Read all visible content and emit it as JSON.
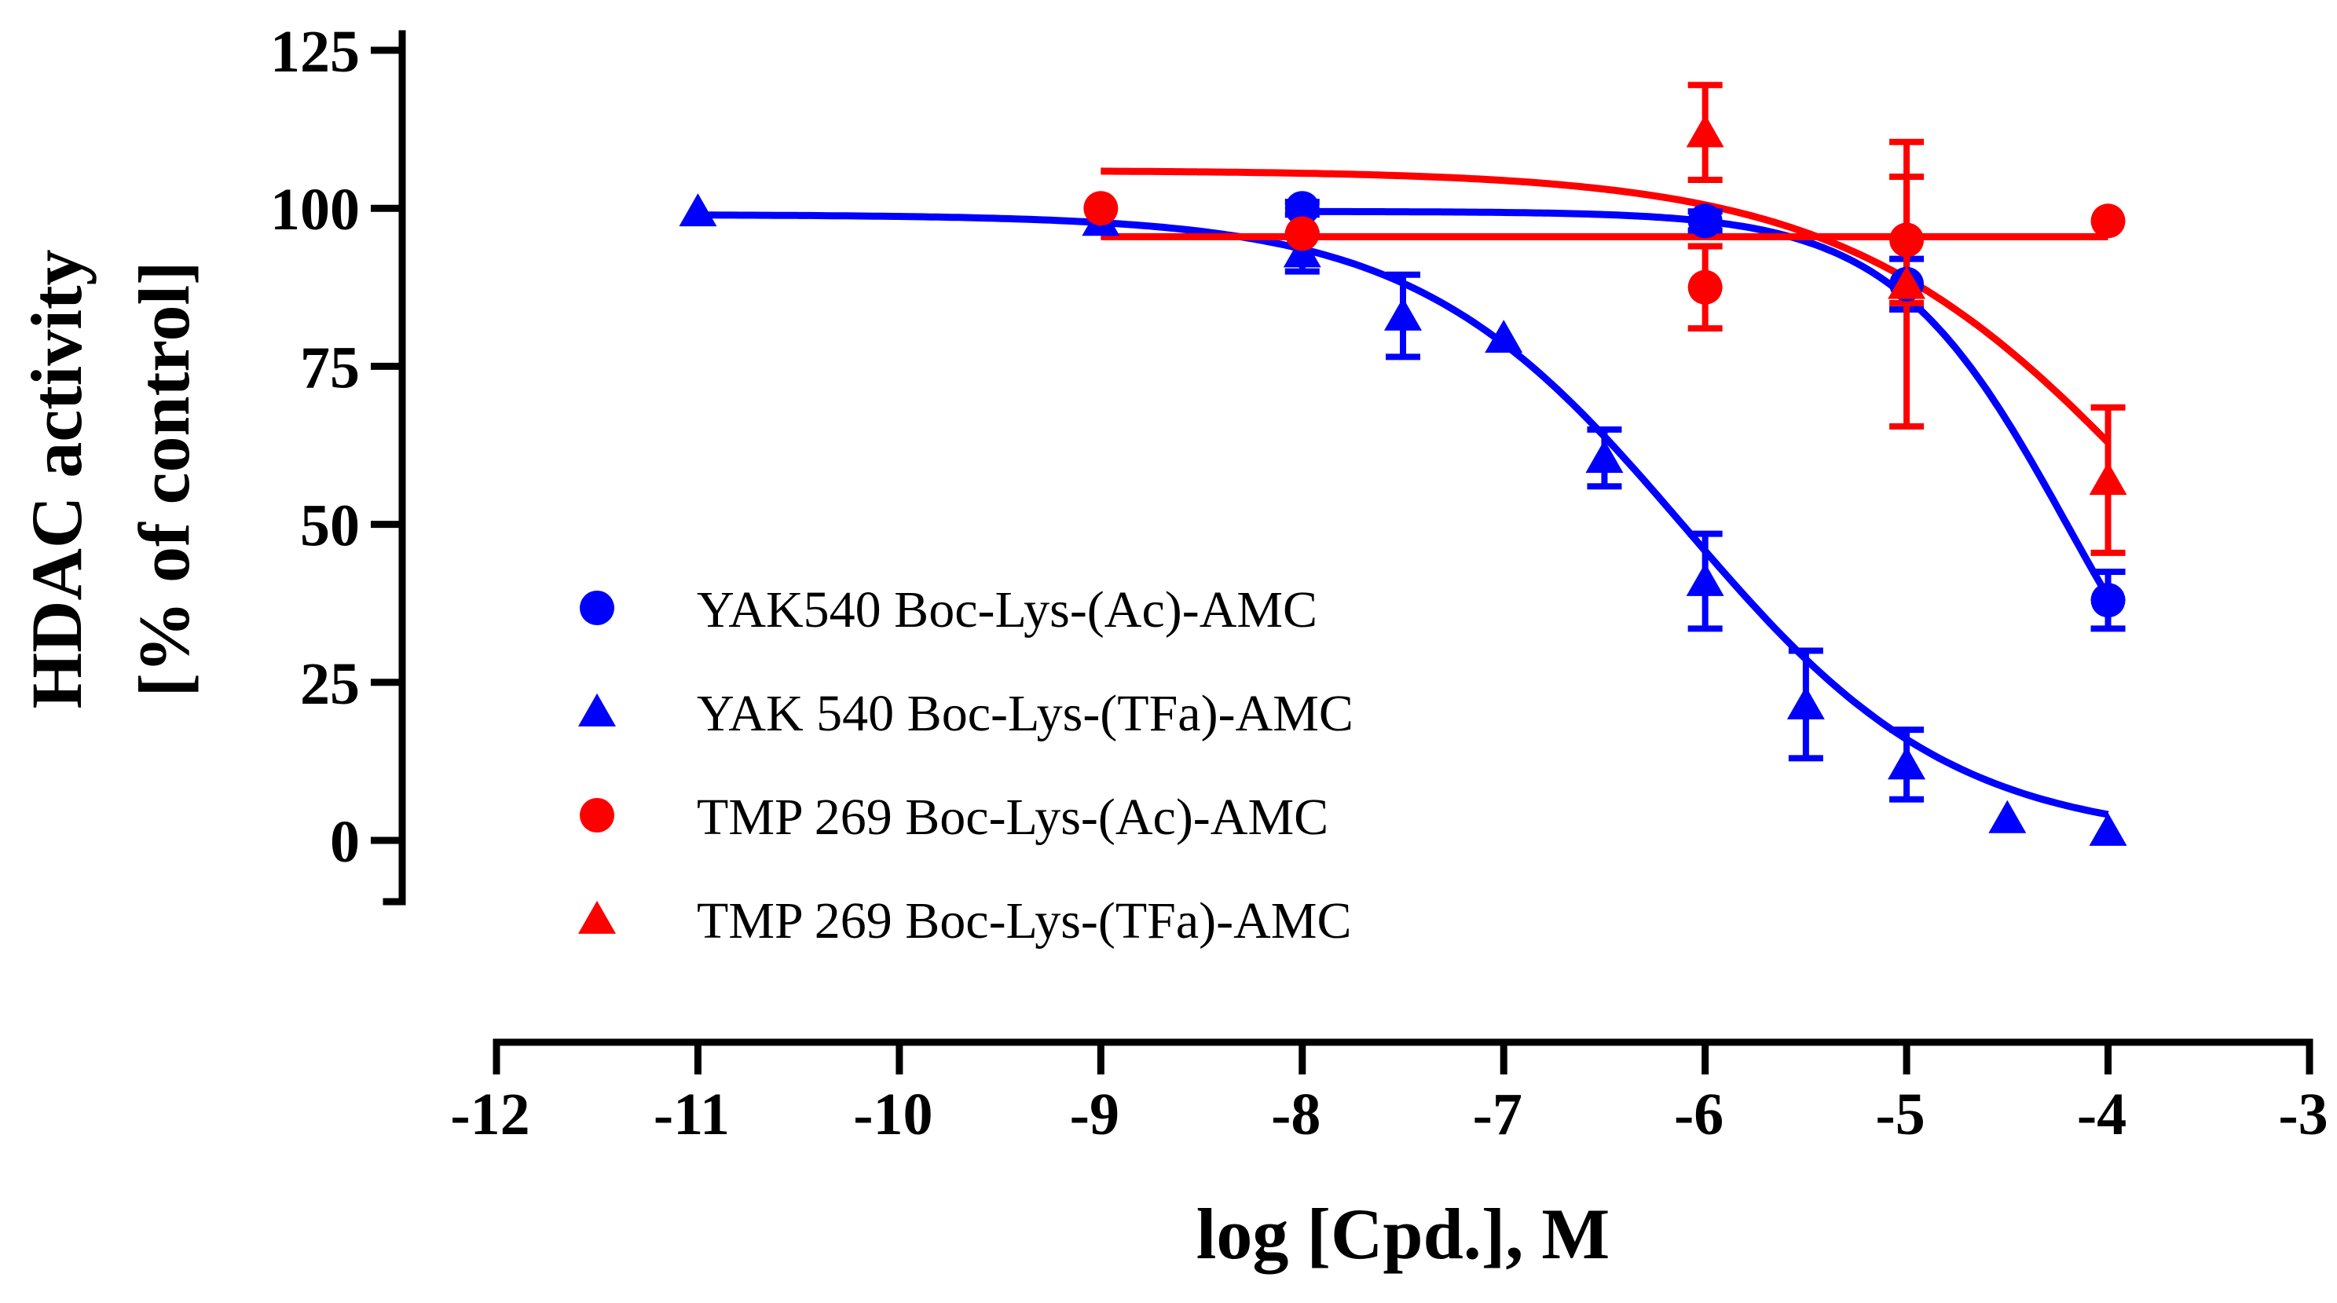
{
  "chart_data": {
    "type": "scatter",
    "title": "",
    "xlabel": "log [Cpd.], M",
    "ylabel_lines": [
      "HDAC activity",
      "[% of control]"
    ],
    "xlim": [
      -12,
      -3
    ],
    "ylim": [
      -10,
      125
    ],
    "x_ticks": [
      -12,
      -11,
      -10,
      -9,
      -8,
      -7,
      -6,
      -5,
      -4,
      -3
    ],
    "x_tick_labels": [
      "-12",
      "-11",
      "-10",
      "-9",
      "-8",
      "-7",
      "-6",
      "-5",
      "-4",
      "-3"
    ],
    "y_ticks": [
      0,
      25,
      50,
      75,
      100,
      125
    ],
    "y_tick_labels": [
      "0",
      "25",
      "50",
      "75",
      "100",
      "125"
    ],
    "legend_position": "center-left",
    "series": [
      {
        "name": "YAK540 Boc-Lys-(Ac)-AMC",
        "color": "#0000ff",
        "marker": "circle",
        "points": [
          {
            "x": -8,
            "y": 100,
            "err": 1
          },
          {
            "x": -6,
            "y": 98,
            "err": 1.5
          },
          {
            "x": -5,
            "y": 88,
            "err": 4
          },
          {
            "x": -4,
            "y": 38,
            "err": 4.5
          }
        ],
        "fit": {
          "top": 99.5,
          "bottom": 0,
          "logIC50": -4.2,
          "hill": 1.0,
          "xmin": -8,
          "xmax": -4
        }
      },
      {
        "name": "YAK 540 Boc-Lys-(TFa)-AMC",
        "color": "#0000ff",
        "marker": "triangle",
        "points": [
          {
            "x": -11,
            "y": 99.5,
            "err": 0
          },
          {
            "x": -9,
            "y": 98,
            "err": 0
          },
          {
            "x": -8,
            "y": 93,
            "err": 3
          },
          {
            "x": -7.5,
            "y": 83,
            "err": 6.5
          },
          {
            "x": -7,
            "y": 79.5,
            "err": 0
          },
          {
            "x": -6.5,
            "y": 60.5,
            "err": 4.5
          },
          {
            "x": -6,
            "y": 41,
            "err": 7.5
          },
          {
            "x": -5.5,
            "y": 21.5,
            "err": 8.5
          },
          {
            "x": -5,
            "y": 12,
            "err": 5.5
          },
          {
            "x": -4.5,
            "y": 3.5,
            "err": 0
          },
          {
            "x": -4,
            "y": 1.5,
            "err": 0
          }
        ],
        "fit": {
          "top": 99,
          "bottom": 0,
          "logIC50": -6.1,
          "hill": 0.65,
          "xmin": -11,
          "xmax": -4
        }
      },
      {
        "name": "TMP 269 Boc-Lys-(Ac)-AMC",
        "color": "#ff0000",
        "marker": "circle",
        "points": [
          {
            "x": -9,
            "y": 100,
            "err": 0
          },
          {
            "x": -8,
            "y": 96,
            "err": 0
          },
          {
            "x": -6,
            "y": 87.5,
            "err": 6.5
          },
          {
            "x": -5,
            "y": 95,
            "err": 10
          },
          {
            "x": -4,
            "y": 98,
            "err": 0
          }
        ],
        "fit": {
          "type": "constant",
          "value": 95.5,
          "xmin": -9,
          "xmax": -4
        }
      },
      {
        "name": "TMP 269 Boc-Lys-(TFa)-AMC",
        "color": "#ff0000",
        "marker": "triangle",
        "points": [
          {
            "x": -6,
            "y": 112,
            "err": 7.5
          },
          {
            "x": -5,
            "y": 88,
            "err": 22.5
          },
          {
            "x": -4,
            "y": 57,
            "err": 11.5
          }
        ],
        "fit": {
          "top": 106,
          "bottom": 0,
          "logIC50": -3.7,
          "hill": 0.55,
          "xmin": -9,
          "xmax": -4
        }
      }
    ]
  }
}
